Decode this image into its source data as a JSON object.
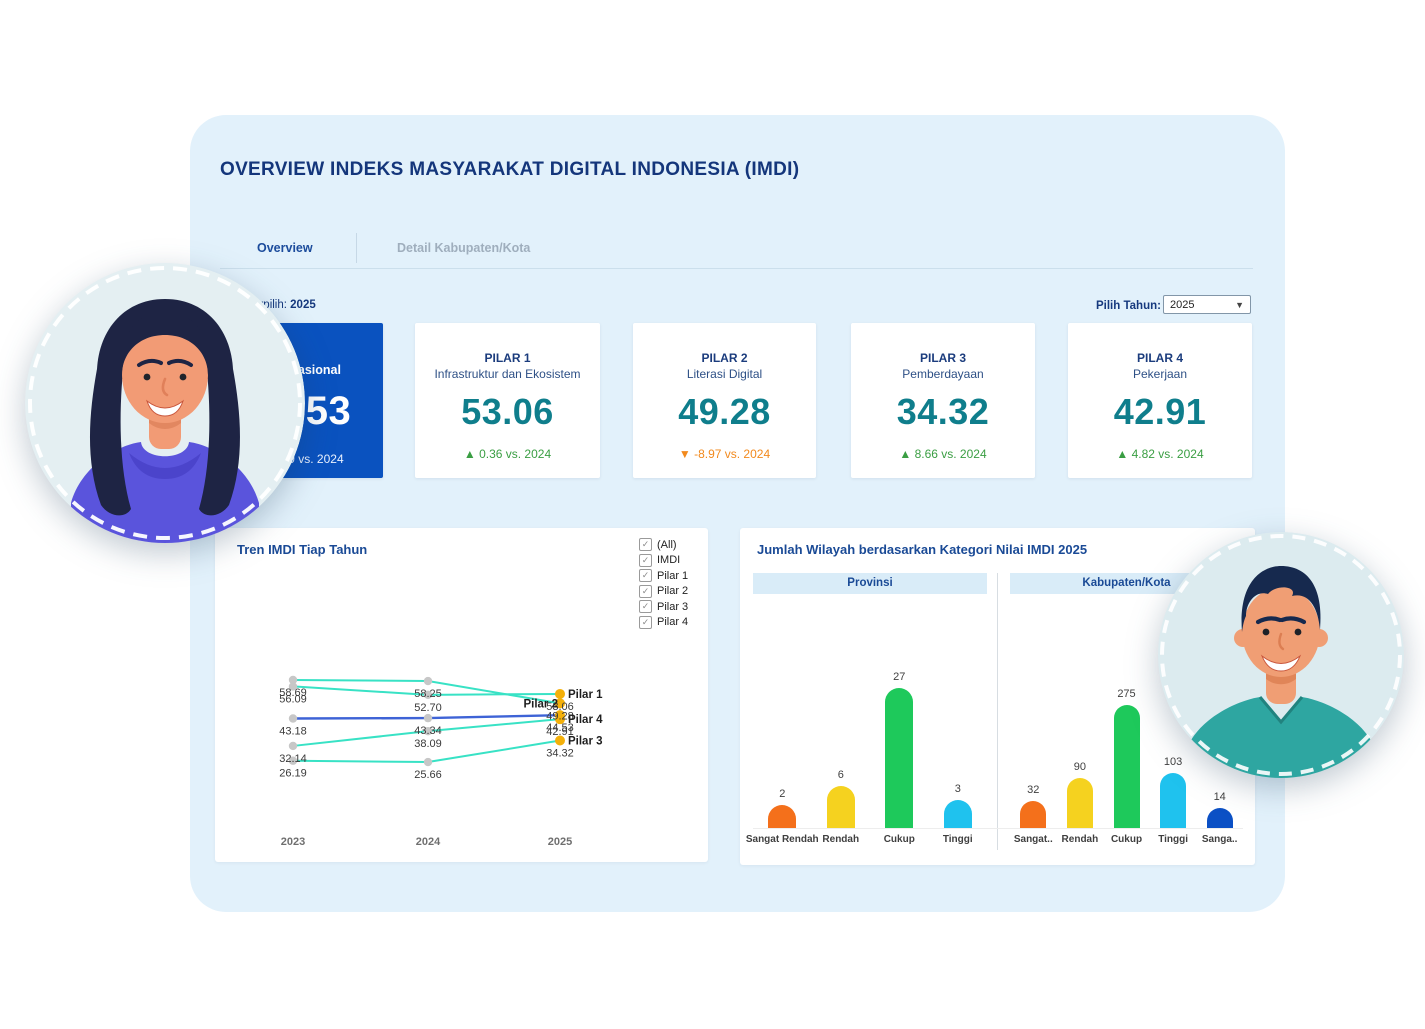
{
  "header": {
    "title": "OVERVIEW INDEKS MASYARAKAT DIGITAL INDONESIA (IMDI)"
  },
  "tabs": [
    {
      "label": "Overview",
      "active": true
    },
    {
      "label": "Detail Kabupaten/Kota",
      "active": false
    }
  ],
  "filters": {
    "selected_year_label": "Tahun Terpilih:",
    "selected_year": "2025",
    "picker_label": "Pilih Tahun:",
    "picker_value": "2025"
  },
  "kpi_cards": [
    {
      "title": "IMDI Nasional",
      "subtitle": "",
      "value": "44.53",
      "delta": "▲ 1.19 vs. 2024",
      "delta_dir": "up",
      "primary": true
    },
    {
      "title": "PILAR 1",
      "subtitle": "Infrastruktur dan Ekosistem",
      "value": "53.06",
      "delta": "▲ 0.36 vs. 2024",
      "delta_dir": "up",
      "primary": false
    },
    {
      "title": "PILAR 2",
      "subtitle": "Literasi Digital",
      "value": "49.28",
      "delta": "▼ -8.97 vs. 2024",
      "delta_dir": "down",
      "primary": false
    },
    {
      "title": "PILAR 3",
      "subtitle": "Pemberdayaan",
      "value": "34.32",
      "delta": "▲ 8.66 vs. 2024",
      "delta_dir": "up",
      "primary": false
    },
    {
      "title": "PILAR 4",
      "subtitle": "Pekerjaan",
      "value": "42.91",
      "delta": "▲ 4.82 vs. 2024",
      "delta_dir": "up",
      "primary": false
    }
  ],
  "chart_data": [
    {
      "type": "line",
      "title": "Tren IMDI Tiap Tahun",
      "x": [
        "2023",
        "2024",
        "2025"
      ],
      "series": [
        {
          "name": "Pilar 1",
          "values": [
            56.09,
            52.7,
            53.06
          ],
          "color": "#38E2C5"
        },
        {
          "name": "Pilar 2",
          "values": [
            58.69,
            58.25,
            49.28
          ],
          "color": "#38E2C5"
        },
        {
          "name": "Pilar 3",
          "values": [
            26.19,
            25.66,
            34.32
          ],
          "color": "#38E2C5"
        },
        {
          "name": "Pilar 4",
          "values": [
            32.14,
            38.09,
            42.91
          ],
          "color": "#38E2C5"
        },
        {
          "name": "IMDI",
          "values": [
            43.18,
            43.34,
            44.53
          ],
          "color": "#3E63D6"
        }
      ],
      "legend": {
        "position": "top-right",
        "items": [
          "(All)",
          "IMDI",
          "Pilar 1",
          "Pilar 2",
          "Pilar 3",
          "Pilar 4"
        ],
        "checked": [
          true,
          true,
          true,
          true,
          true,
          true
        ]
      },
      "point_color_mid": "#C7C7C7",
      "point_color_end": "#F4B009",
      "grid": false
    },
    {
      "type": "bar",
      "title": "Jumlah Wilayah berdasarkan Kategori Nilai IMDI 2025",
      "panels": [
        {
          "name": "Provinsi",
          "categories": [
            "Sangat Rendah",
            "Rendah",
            "Cukup",
            "Tinggi"
          ],
          "values": [
            2,
            6,
            27,
            3
          ],
          "colors": [
            "#F4701B",
            "#F5D21F",
            "#1EC95B",
            "#1FC2EE"
          ]
        },
        {
          "name": "Kabupaten/Kota",
          "categories": [
            "Sangat..",
            "Rendah",
            "Cukup",
            "Tinggi",
            "Sanga.."
          ],
          "values": [
            32,
            90,
            275,
            103,
            14
          ],
          "colors": [
            "#F4701B",
            "#F5D21F",
            "#1EC95B",
            "#1FC2EE",
            "#0B50C5"
          ]
        }
      ],
      "grid": false
    }
  ]
}
